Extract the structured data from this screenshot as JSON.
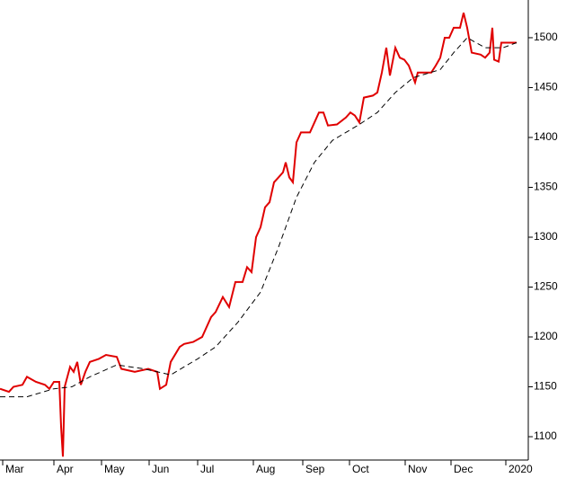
{
  "chart_data": {
    "type": "line",
    "xlim": [
      0,
      588
    ],
    "xticks": [
      {
        "value": 3,
        "label": "Mar"
      },
      {
        "value": 60,
        "label": "Apr"
      },
      {
        "value": 113,
        "label": "May"
      },
      {
        "value": 166,
        "label": "Jun"
      },
      {
        "value": 220,
        "label": "Jul"
      },
      {
        "value": 282,
        "label": "Aug"
      },
      {
        "value": 337,
        "label": "Sep"
      },
      {
        "value": 389,
        "label": "Oct"
      },
      {
        "value": 451,
        "label": "Nov"
      },
      {
        "value": 502,
        "label": "Dec"
      },
      {
        "value": 563,
        "label": "2020"
      }
    ],
    "ylim": [
      1076.6,
      1537.8
    ],
    "yticks": [
      1100,
      1150,
      1200,
      1250,
      1300,
      1350,
      1400,
      1450,
      1500
    ],
    "series": [
      {
        "color": "#e00000",
        "dashed": false,
        "x": [
          0,
          10,
          15,
          25,
          30,
          40,
          50,
          55,
          60,
          66,
          68,
          70,
          72,
          78,
          82,
          86,
          90,
          95,
          100,
          110,
          118,
          130,
          135,
          150,
          165,
          175,
          178,
          185,
          190,
          200,
          205,
          215,
          225,
          235,
          240,
          248,
          255,
          262,
          270,
          275,
          280,
          285,
          290,
          295,
          300,
          305,
          310,
          315,
          318,
          322,
          326,
          330,
          335,
          345,
          350,
          355,
          360,
          365,
          375,
          385,
          390,
          395,
          400,
          405,
          415,
          420,
          425,
          430,
          434,
          440,
          445,
          450,
          455,
          462,
          465,
          480,
          485,
          490,
          495,
          500,
          505,
          512,
          516,
          520,
          525,
          535,
          540,
          545,
          548,
          550,
          555,
          558,
          575
        ],
        "values": [
          1148,
          1145,
          1150,
          1152,
          1160,
          1155,
          1152,
          1148,
          1155,
          1155,
          1110,
          1080,
          1150,
          1170,
          1165,
          1175,
          1152,
          1165,
          1175,
          1178,
          1182,
          1180,
          1168,
          1165,
          1168,
          1165,
          1148,
          1152,
          1175,
          1190,
          1193,
          1195,
          1200,
          1220,
          1225,
          1240,
          1230,
          1255,
          1255,
          1270,
          1265,
          1300,
          1310,
          1330,
          1335,
          1355,
          1360,
          1365,
          1375,
          1360,
          1355,
          1395,
          1405,
          1405,
          1415,
          1425,
          1425,
          1412,
          1413,
          1420,
          1425,
          1422,
          1415,
          1440,
          1442,
          1445,
          1465,
          1490,
          1462,
          1490,
          1480,
          1478,
          1472,
          1455,
          1465,
          1465,
          1472,
          1480,
          1500,
          1500,
          1510,
          1510,
          1525,
          1510,
          1485,
          1483,
          1480,
          1485,
          1510,
          1478,
          1476,
          1495,
          1495
        ]
      },
      {
        "color": "#000000",
        "dashed": true,
        "x": [
          0,
          30,
          60,
          80,
          100,
          130,
          160,
          190,
          220,
          240,
          265,
          290,
          310,
          330,
          350,
          370,
          400,
          420,
          440,
          460,
          490,
          505,
          520,
          540,
          560,
          575
        ],
        "values": [
          1140,
          1140,
          1148,
          1150,
          1160,
          1172,
          1168,
          1162,
          1178,
          1190,
          1215,
          1245,
          1290,
          1340,
          1375,
          1397,
          1413,
          1425,
          1445,
          1460,
          1468,
          1485,
          1500,
          1490,
          1490,
          1495
        ]
      }
    ]
  }
}
